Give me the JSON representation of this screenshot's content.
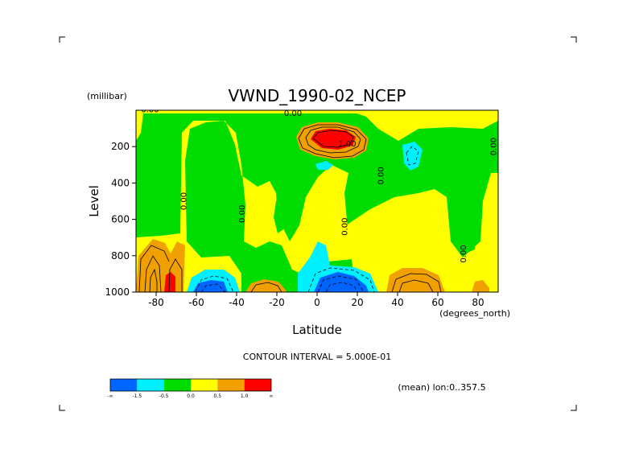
{
  "chart_data": {
    "type": "heatmap",
    "title": "VWND_1990-02_NCEP",
    "xlabel": "Latitude",
    "ylabel": "Level",
    "yunit": "(millibar)",
    "xunit": "(degrees_north)",
    "xlim": [
      -90,
      90
    ],
    "ylim": [
      1000,
      0
    ],
    "x_ticks": [
      "-80",
      "-60",
      "-40",
      "-20",
      "0",
      "20",
      "40",
      "60",
      "80"
    ],
    "y_ticks": [
      "200",
      "400",
      "600",
      "800",
      "1000"
    ],
    "contour_interval_text": "CONTOUR INTERVAL = 5.000E-01",
    "mean_note": "(mean) lon:0..357.5",
    "contour_labels": [
      {
        "text": "0.00",
        "lat": -83,
        "level": 10
      },
      {
        "text": "0.00",
        "lat": -65,
        "level": 500
      },
      {
        "text": "0.00",
        "lat": -36,
        "level": 570
      },
      {
        "text": "0.00",
        "lat": -12,
        "level": 30
      },
      {
        "text": "1.00",
        "lat": 15,
        "level": 200
      },
      {
        "text": "0.00",
        "lat": 15,
        "level": 640
      },
      {
        "text": "0.00",
        "lat": 33,
        "level": 360
      },
      {
        "text": "0.00",
        "lat": 74,
        "level": 790
      },
      {
        "text": "0.00",
        "lat": 89,
        "level": 200
      }
    ],
    "colorbar": {
      "colors": [
        "#0064ff",
        "#00f0ff",
        "#00dc00",
        "#ffff00",
        "#f0a000",
        "#ff0000"
      ],
      "labels": [
        "-∞",
        "-1.5",
        "-0.5",
        "0.0",
        "0.5",
        "1.0",
        "∞"
      ]
    }
  }
}
